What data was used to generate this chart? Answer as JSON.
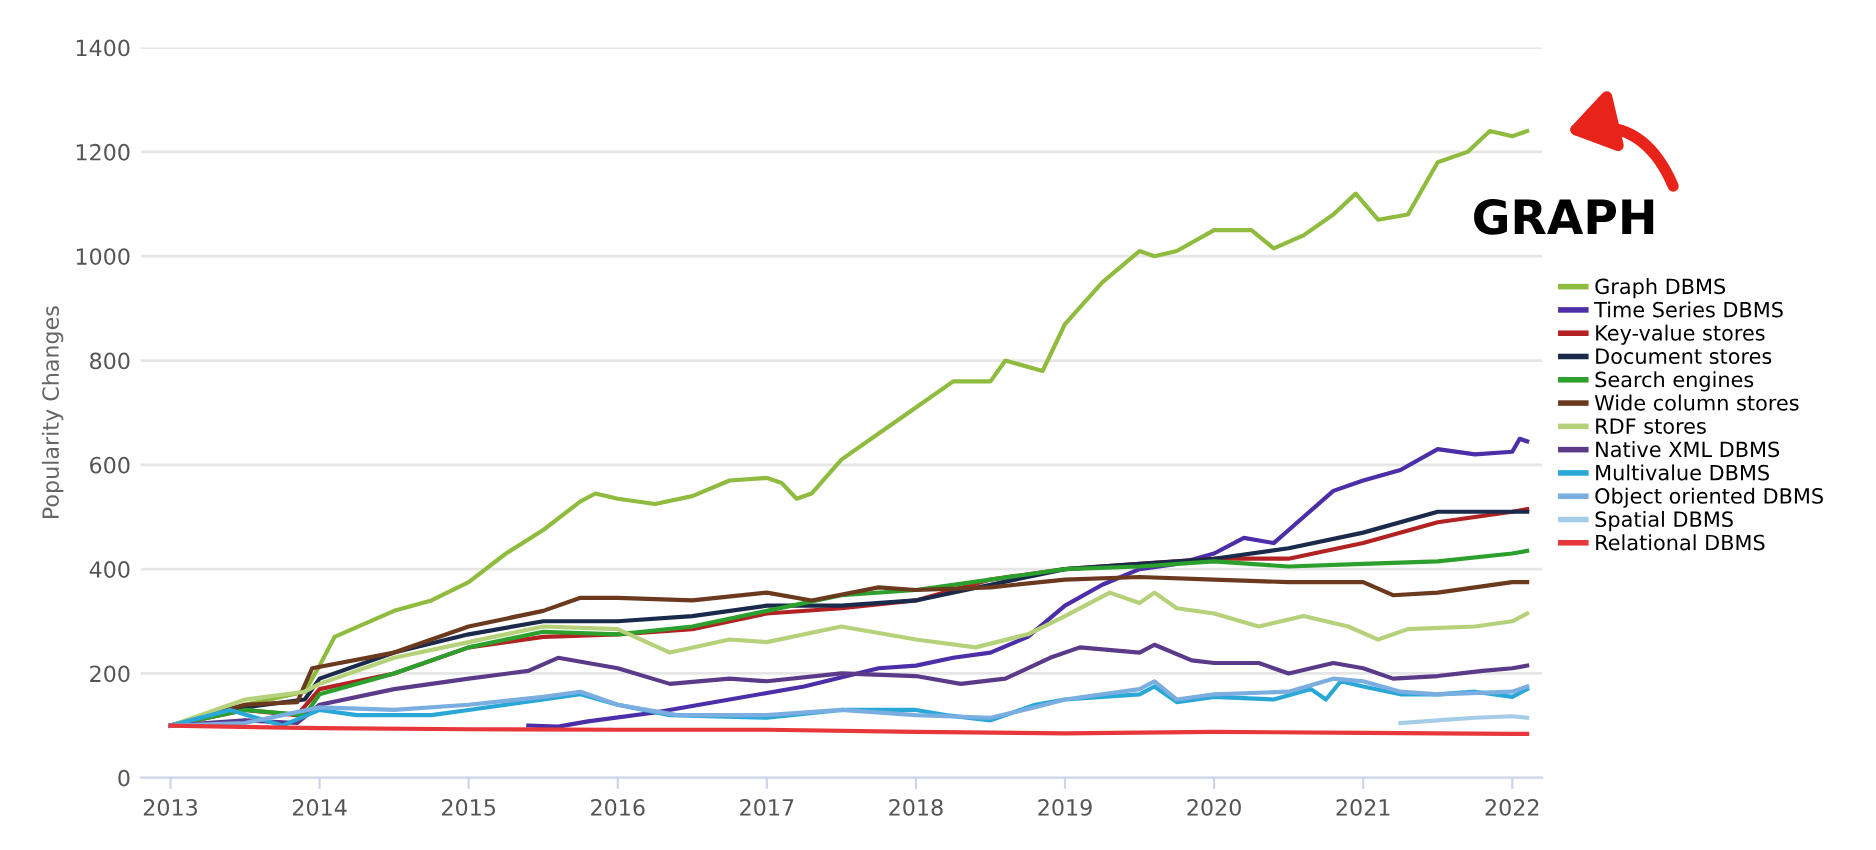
{
  "chart_data": {
    "type": "line",
    "ylabel": "Popularity Changes",
    "xlim": [
      2012.8,
      2022.2
    ],
    "xticks": [
      2013,
      2014,
      2015,
      2016,
      2017,
      2018,
      2019,
      2020,
      2021,
      2022
    ],
    "ylim": [
      0,
      1400
    ],
    "yticks": [
      0,
      200,
      400,
      600,
      800,
      1000,
      1200,
      1400
    ],
    "grid": "y",
    "legend": "right",
    "marker": "none",
    "line_style": "solid",
    "annotations": [
      "GRAPH"
    ],
    "series": [
      {
        "name": "Graph DBMS",
        "color": "#8fbc3f",
        "x": [
          2013,
          2013.5,
          2013.9,
          2014.0,
          2014.1,
          2014.5,
          2014.75,
          2015.0,
          2015.25,
          2015.5,
          2015.75,
          2015.85,
          2016.0,
          2016.25,
          2016.5,
          2016.75,
          2017.0,
          2017.1,
          2017.2,
          2017.3,
          2017.5,
          2017.75,
          2018.0,
          2018.25,
          2018.5,
          2018.6,
          2018.85,
          2019.0,
          2019.25,
          2019.5,
          2019.6,
          2019.75,
          2020.0,
          2020.25,
          2020.4,
          2020.6,
          2020.8,
          2020.95,
          2021.1,
          2021.3,
          2021.5,
          2021.7,
          2021.85,
          2022.0,
          2022.1
        ],
        "values": [
          100,
          140,
          165,
          215,
          270,
          320,
          340,
          375,
          430,
          475,
          530,
          545,
          535,
          525,
          540,
          570,
          575,
          565,
          535,
          545,
          610,
          660,
          710,
          760,
          760,
          800,
          780,
          870,
          950,
          1010,
          1000,
          1010,
          1050,
          1050,
          1015,
          1040,
          1080,
          1120,
          1070,
          1080,
          1180,
          1200,
          1240,
          1230,
          1240
        ]
      },
      {
        "name": "Time Series DBMS",
        "color": "#4b2ea8",
        "x": [
          2015.4,
          2015.6,
          2015.8,
          2016.25,
          2016.75,
          2017.25,
          2017.75,
          2018.0,
          2018.25,
          2018.5,
          2018.75,
          2019.0,
          2019.25,
          2019.5,
          2019.75,
          2020.0,
          2020.2,
          2020.4,
          2020.6,
          2020.8,
          2021.0,
          2021.25,
          2021.5,
          2021.75,
          2022.0,
          2022.05,
          2022.1
        ],
        "values": [
          100,
          98,
          108,
          125,
          150,
          175,
          210,
          215,
          230,
          240,
          270,
          330,
          370,
          400,
          410,
          430,
          460,
          450,
          500,
          550,
          570,
          590,
          630,
          620,
          625,
          650,
          645
        ]
      },
      {
        "name": "Key-value stores",
        "color": "#b22222",
        "x": [
          2013,
          2013.5,
          2013.85,
          2014,
          2014.5,
          2015,
          2015.5,
          2016,
          2016.5,
          2017,
          2017.5,
          2018,
          2018.5,
          2019,
          2019.5,
          2020,
          2020.5,
          2021,
          2021.5,
          2022,
          2022.1
        ],
        "values": [
          100,
          130,
          120,
          170,
          200,
          250,
          270,
          275,
          285,
          315,
          325,
          340,
          380,
          400,
          410,
          420,
          420,
          450,
          490,
          510,
          515
        ]
      },
      {
        "name": "Document stores",
        "color": "#1a2a4a",
        "x": [
          2013,
          2013.5,
          2013.9,
          2014,
          2014.5,
          2015,
          2015.5,
          2016,
          2016.5,
          2017,
          2017.5,
          2018,
          2018.5,
          2019,
          2019.5,
          2020,
          2020.5,
          2021,
          2021.5,
          2022,
          2022.1
        ],
        "values": [
          100,
          135,
          150,
          190,
          240,
          275,
          300,
          300,
          310,
          330,
          330,
          340,
          370,
          400,
          410,
          420,
          440,
          470,
          510,
          510,
          510
        ]
      },
      {
        "name": "Search engines",
        "color": "#2ca02c",
        "x": [
          2013,
          2013.5,
          2013.9,
          2014,
          2014.5,
          2015,
          2015.5,
          2016,
          2016.5,
          2017,
          2017.5,
          2018,
          2018.5,
          2019,
          2019.5,
          2020,
          2020.5,
          2021,
          2021.5,
          2022,
          2022.1
        ],
        "values": [
          100,
          130,
          120,
          160,
          200,
          250,
          280,
          275,
          290,
          320,
          350,
          360,
          380,
          400,
          405,
          415,
          405,
          410,
          415,
          430,
          435
        ]
      },
      {
        "name": "Wide column stores",
        "color": "#6b3a1e",
        "x": [
          2013,
          2013.5,
          2013.85,
          2013.95,
          2014.5,
          2015,
          2015.5,
          2015.75,
          2016,
          2016.5,
          2017,
          2017.3,
          2017.75,
          2018,
          2018.5,
          2019,
          2019.5,
          2020,
          2020.5,
          2021,
          2021.2,
          2021.5,
          2022,
          2022.1
        ],
        "values": [
          100,
          140,
          145,
          210,
          240,
          290,
          320,
          345,
          345,
          340,
          355,
          340,
          365,
          360,
          365,
          380,
          385,
          380,
          375,
          375,
          350,
          355,
          375,
          375
        ]
      },
      {
        "name": "RDF stores",
        "color": "#b5d17a",
        "x": [
          2013,
          2013.5,
          2013.9,
          2014,
          2014.5,
          2015,
          2015.5,
          2016,
          2016.35,
          2016.75,
          2017,
          2017.5,
          2018,
          2018.4,
          2018.75,
          2019,
          2019.3,
          2019.5,
          2019.6,
          2019.75,
          2020,
          2020.3,
          2020.6,
          2020.9,
          2021.1,
          2021.3,
          2021.75,
          2022,
          2022.1
        ],
        "values": [
          100,
          150,
          165,
          180,
          230,
          260,
          290,
          285,
          240,
          265,
          260,
          290,
          265,
          250,
          275,
          310,
          355,
          335,
          355,
          325,
          315,
          290,
          310,
          290,
          265,
          285,
          290,
          300,
          315
        ]
      },
      {
        "name": "Native XML DBMS",
        "color": "#5b3a8a",
        "x": [
          2013,
          2013.5,
          2013.85,
          2014,
          2014.5,
          2015,
          2015.4,
          2015.6,
          2016,
          2016.35,
          2016.75,
          2017,
          2017.5,
          2018,
          2018.3,
          2018.6,
          2018.9,
          2019.1,
          2019.5,
          2019.6,
          2019.85,
          2020,
          2020.3,
          2020.5,
          2020.8,
          2021,
          2021.2,
          2021.5,
          2021.8,
          2022,
          2022.1
        ],
        "values": [
          100,
          110,
          105,
          140,
          170,
          190,
          205,
          230,
          210,
          180,
          190,
          185,
          200,
          195,
          180,
          190,
          230,
          250,
          240,
          255,
          225,
          220,
          220,
          200,
          220,
          210,
          190,
          195,
          205,
          210,
          215
        ]
      },
      {
        "name": "Multivalue DBMS",
        "color": "#29a8d8",
        "x": [
          2013,
          2013.4,
          2013.75,
          2014,
          2014.25,
          2014.75,
          2015,
          2015.5,
          2015.75,
          2016,
          2016.35,
          2017,
          2017.5,
          2018,
          2018.2,
          2018.5,
          2018.8,
          2019,
          2019.5,
          2019.6,
          2019.75,
          2020,
          2020.4,
          2020.65,
          2020.75,
          2020.85,
          2021,
          2021.25,
          2021.5,
          2021.75,
          2022,
          2022.1
        ],
        "values": [
          100,
          130,
          100,
          130,
          120,
          120,
          130,
          150,
          160,
          140,
          120,
          115,
          130,
          130,
          120,
          110,
          140,
          150,
          160,
          175,
          145,
          155,
          150,
          170,
          150,
          185,
          175,
          160,
          160,
          165,
          155,
          170
        ]
      },
      {
        "name": "Object oriented DBMS",
        "color": "#7aaee0",
        "x": [
          2013,
          2013.5,
          2014,
          2014.5,
          2015,
          2015.5,
          2015.75,
          2016,
          2016.4,
          2017,
          2017.5,
          2018,
          2018.5,
          2018.8,
          2019,
          2019.5,
          2019.6,
          2019.75,
          2020,
          2020.5,
          2020.8,
          2021,
          2021.25,
          2021.5,
          2022,
          2022.1
        ],
        "values": [
          100,
          105,
          135,
          130,
          140,
          155,
          165,
          140,
          120,
          120,
          130,
          120,
          115,
          135,
          150,
          170,
          185,
          150,
          160,
          165,
          190,
          185,
          165,
          160,
          165,
          175
        ]
      },
      {
        "name": "Spatial DBMS",
        "color": "#a6cde8",
        "x": [
          2021.25,
          2021.5,
          2021.75,
          2022,
          2022.1
        ],
        "values": [
          105,
          110,
          115,
          118,
          115
        ]
      },
      {
        "name": "Relational DBMS",
        "color": "#e8373a",
        "x": [
          2013,
          2014,
          2015,
          2016,
          2017,
          2018,
          2019,
          2020,
          2021,
          2022,
          2022.1
        ],
        "values": [
          100,
          95,
          93,
          92,
          92,
          88,
          85,
          88,
          86,
          84,
          84
        ]
      }
    ]
  }
}
